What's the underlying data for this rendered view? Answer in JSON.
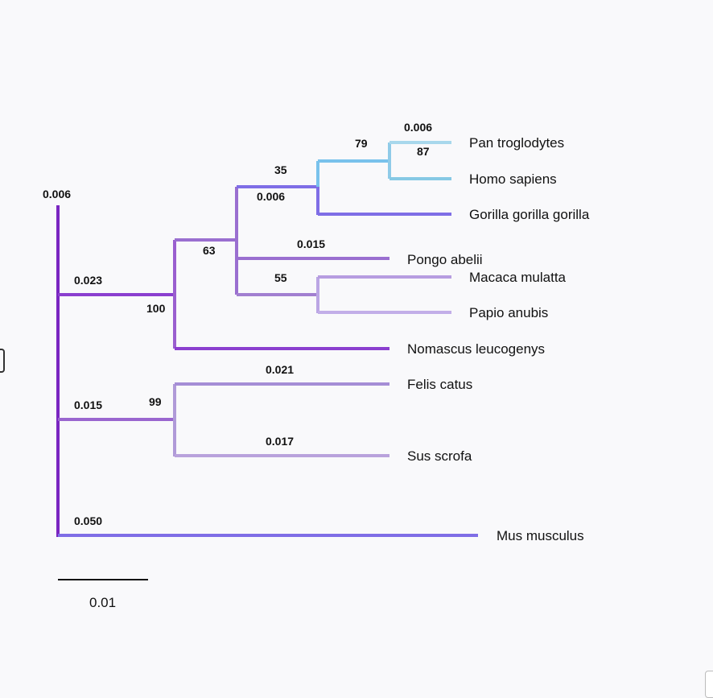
{
  "tree": {
    "taxa": {
      "pan_troglodytes": "Pan troglodytes",
      "homo_sapiens": "Homo sapiens",
      "gorilla": "Gorilla gorilla gorilla",
      "pongo": "Pongo abelii",
      "macaca": "Macaca mulatta",
      "papio": "Papio anubis",
      "nomascus": "Nomascus leucogenys",
      "felis": "Felis catus",
      "sus": "Sus scrofa",
      "mus": "Mus musculus"
    },
    "branch_lengths": {
      "root": "0.006",
      "primates": "0.023",
      "laurasiatheria": "0.015",
      "mus": "0.050",
      "hominini_tip": "0.006",
      "homininae": "0.006",
      "pongo": "0.015",
      "felis": "0.021",
      "sus": "0.017"
    },
    "bootstrap": {
      "pan_homo": "79",
      "pan_homo_inner": "87",
      "homininae": "35",
      "hominidae": "63",
      "papionini": "55",
      "catarrhini": "100",
      "laurasiatheria": "99"
    },
    "colors": {
      "deep_purple": "#7a26c1",
      "purple": "#8b3fcf",
      "lilac": "#a27fd0",
      "light_lilac": "#bba6e4",
      "blue_violet": "#7f6ee6",
      "sky": "#79c2ec",
      "pale_sky": "#a8d8ec"
    }
  },
  "scale_bar": {
    "label": "0.01"
  }
}
